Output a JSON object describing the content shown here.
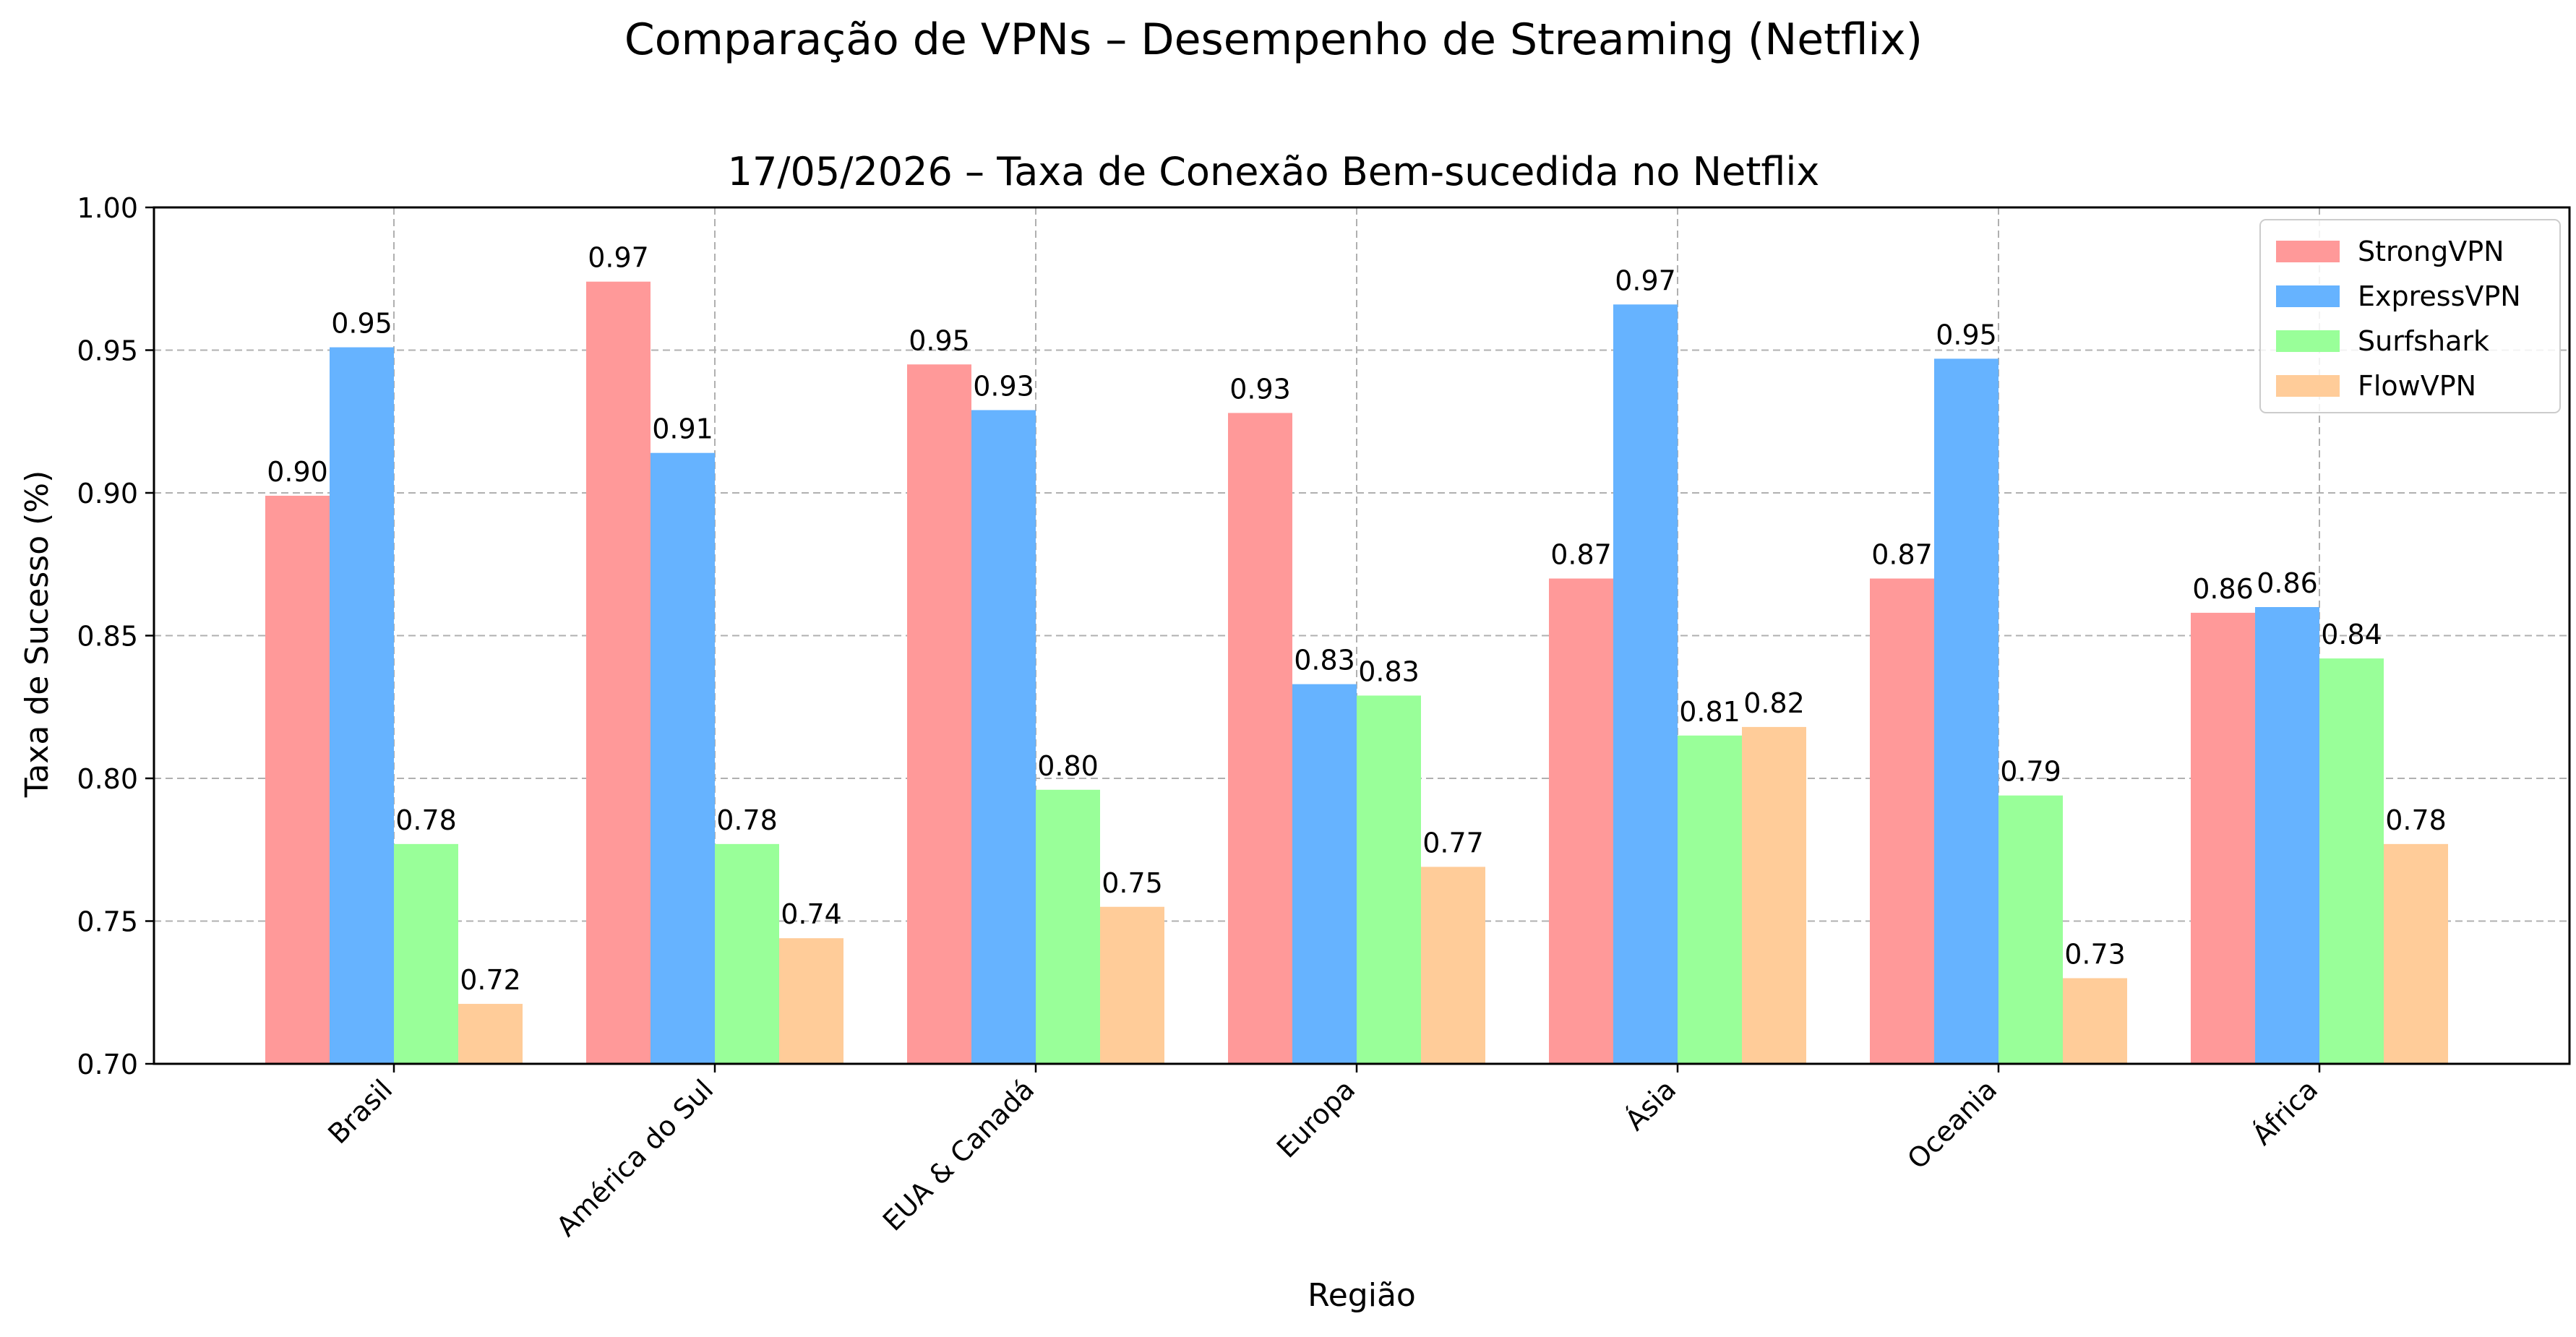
{
  "chart_data": {
    "type": "bar",
    "suptitle": "Comparação de VPNs – Desempenho de Streaming (Netflix)",
    "title": "17/05/2026 – Taxa de Conexão Bem-sucedida no Netflix",
    "xlabel": "Região",
    "ylabel": "Taxa de Sucesso (%)",
    "categories": [
      "Brasil",
      "América do Sul",
      "EUA & Canadá",
      "Europa",
      "Ásia",
      "Oceania",
      "África"
    ],
    "series": [
      {
        "name": "StrongVPN",
        "color": "#ff9999",
        "values": [
          0.899,
          0.974,
          0.945,
          0.928,
          0.87,
          0.87,
          0.858
        ],
        "labels": [
          "0.90",
          "0.97",
          "0.95",
          "0.93",
          "0.87",
          "0.87",
          "0.86"
        ]
      },
      {
        "name": "ExpressVPN",
        "color": "#66b3ff",
        "values": [
          0.951,
          0.914,
          0.929,
          0.833,
          0.966,
          0.947,
          0.86
        ],
        "labels": [
          "0.95",
          "0.91",
          "0.93",
          "0.83",
          "0.97",
          "0.95",
          "0.86"
        ]
      },
      {
        "name": "Surfshark",
        "color": "#99ff99",
        "values": [
          0.777,
          0.777,
          0.796,
          0.829,
          0.815,
          0.794,
          0.842
        ],
        "labels": [
          "0.78",
          "0.78",
          "0.80",
          "0.83",
          "0.81",
          "0.79",
          "0.84"
        ]
      },
      {
        "name": "FlowVPN",
        "color": "#ffcc99",
        "values": [
          0.721,
          0.744,
          0.755,
          0.769,
          0.818,
          0.73,
          0.777
        ],
        "labels": [
          "0.72",
          "0.74",
          "0.75",
          "0.77",
          "0.82",
          "0.73",
          "0.78"
        ]
      }
    ],
    "ylim": [
      0.7,
      1.0
    ],
    "yticks": [
      "0.70",
      "0.75",
      "0.80",
      "0.85",
      "0.90",
      "0.95",
      "1.00"
    ],
    "grid": true,
    "legend_position": "top-right"
  }
}
